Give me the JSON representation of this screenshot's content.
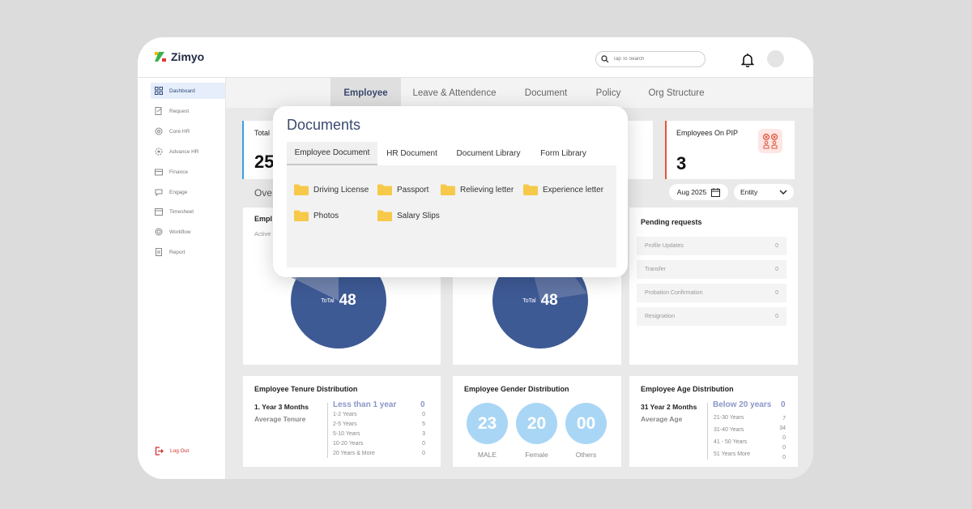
{
  "app": {
    "name": "Zimyo",
    "search_placeholder": "Tap To Search"
  },
  "sidebar": {
    "items": [
      {
        "label": "Dashboard",
        "icon": "dashboard-icon",
        "active": true
      },
      {
        "label": "Request",
        "icon": "request-icon"
      },
      {
        "label": "Core HR",
        "icon": "core-hr-icon"
      },
      {
        "label": "Advance HR",
        "icon": "advance-hr-icon"
      },
      {
        "label": "Finance",
        "icon": "finance-icon"
      },
      {
        "label": "Engage",
        "icon": "engage-icon"
      },
      {
        "label": "Timesheet",
        "icon": "timesheet-icon"
      },
      {
        "label": "Workflow",
        "icon": "workflow-icon"
      },
      {
        "label": "Report",
        "icon": "report-icon"
      }
    ],
    "logout": "Log Out"
  },
  "tabs": [
    "Employee",
    "Leave & Attendence",
    "Document",
    "Policy",
    "Org Structure"
  ],
  "active_tab": "Employee",
  "stats": {
    "total_label": "Total",
    "total_value_partial": "25",
    "pip_label": "Employees On PIP",
    "pip_value": "3"
  },
  "overview": {
    "label_partial": "Ove",
    "date": "Aug 2025",
    "entity": "Entity"
  },
  "pie_cards": [
    {
      "title_partial": "Empl",
      "subtitle_partial": "Active",
      "total_label": "ToTal",
      "total": "48"
    },
    {
      "total_label": "ToTal",
      "total": "48"
    }
  ],
  "pending": {
    "title": "Pending requests",
    "rows": [
      {
        "label": "Profile Updates",
        "value": "0"
      },
      {
        "label": "Transfer",
        "value": "0"
      },
      {
        "label": "Probation Confirmation",
        "value": "0"
      },
      {
        "label": "Resignation",
        "value": "0"
      }
    ]
  },
  "tenure": {
    "title": "Employee Tenure Distribution",
    "average": "1. Year 3 Months",
    "average_label": "Average Tenure",
    "head_label": "Less than 1 year",
    "head_value": "0",
    "rows": [
      {
        "label": "1-2  Years",
        "value": "0"
      },
      {
        "label": "2-5  Years",
        "value": "5"
      },
      {
        "label": "5-10  Years",
        "value": "3"
      },
      {
        "label": "10-20 Years",
        "value": "0"
      },
      {
        "label": "20 Years & More",
        "value": "0"
      }
    ]
  },
  "gender": {
    "title": "Employee Gender Distribution",
    "items": [
      {
        "label": "MALE",
        "value": "23"
      },
      {
        "label": "Female",
        "value": "20"
      },
      {
        "label": "Others",
        "value": "00"
      }
    ]
  },
  "age": {
    "title": "Employee Age Distribution",
    "average": "31 Year 2 Months",
    "average_label": "Average Age",
    "head_label": "Below 20 years",
    "head_value": "0",
    "rows": [
      {
        "label": "21-30  Years",
        "value": "7"
      },
      {
        "label": "31-40  Years",
        "value": "34"
      },
      {
        "label": "41 - 50 Years",
        "value": "0"
      },
      {
        "label": "51 Years More",
        "value": "0"
      }
    ],
    "extra_value": "0"
  },
  "documents": {
    "title": "Documents",
    "tabs": [
      "Employee Document",
      "HR Document",
      "Document Library",
      "Form Library"
    ],
    "active_tab": "Employee Document",
    "folders": [
      "Driving License",
      "Passport",
      "Relieving letter",
      "Experience letter",
      "Photos",
      "Salary Slips"
    ]
  },
  "colors": {
    "accent": "#3a4a6e",
    "pie": "#3e5a95",
    "gender_circle": "#aad6f5",
    "folder": "#f6c94a",
    "logout": "#d32f2f"
  }
}
